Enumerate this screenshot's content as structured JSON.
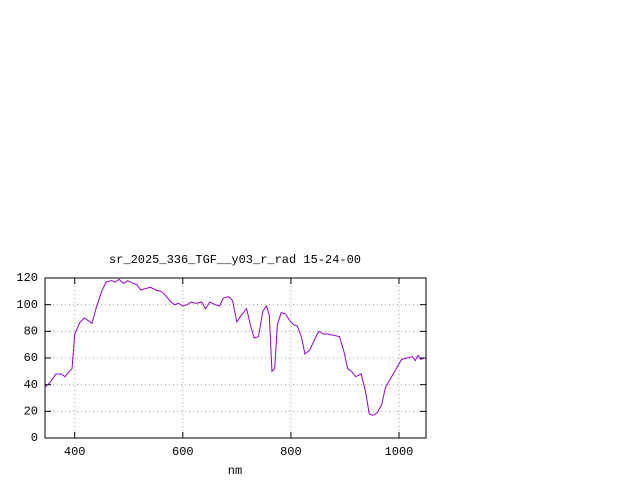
{
  "chart_data": {
    "type": "line",
    "title": "sr_2025_336_TGF__y03_r_rad 15-24-00",
    "x_label": "nm",
    "xlim": [
      345,
      1050
    ],
    "xticks": [
      400,
      600,
      800,
      1000
    ],
    "ylim": [
      0,
      120
    ],
    "yticks": [
      0,
      20,
      40,
      60,
      80,
      100,
      120
    ],
    "grid": true,
    "series": [
      {
        "color": "#9400d3",
        "x": [
          345,
          355,
          365,
          375,
          382,
          390,
          395,
          400,
          410,
          418,
          425,
          432,
          440,
          450,
          458,
          468,
          475,
          482,
          490,
          498,
          508,
          515,
          522,
          530,
          540,
          550,
          560,
          570,
          578,
          585,
          592,
          600,
          608,
          615,
          625,
          635,
          642,
          650,
          660,
          668,
          675,
          685,
          692,
          700,
          708,
          718,
          725,
          732,
          740,
          748,
          755,
          760,
          765,
          770,
          775,
          782,
          790,
          798,
          805,
          812,
          820,
          826,
          835,
          845,
          852,
          860,
          868,
          880,
          890,
          898,
          905,
          912,
          920,
          930,
          938,
          945,
          952,
          960,
          968,
          975,
          985,
          995,
          1005,
          1015,
          1025,
          1030,
          1035,
          1040,
          1048
        ],
        "values": [
          38,
          42,
          48,
          48,
          46,
          50,
          52,
          78,
          87,
          90,
          88,
          86,
          98,
          110,
          117,
          118,
          117,
          119,
          116,
          118,
          116,
          115,
          111,
          112,
          113,
          111,
          110,
          106,
          102,
          100,
          101,
          99,
          100,
          102,
          101,
          102,
          97,
          102,
          100,
          99,
          105,
          106,
          103,
          87,
          92,
          97,
          85,
          75,
          76,
          95,
          99,
          92,
          50,
          52,
          85,
          94,
          93,
          88,
          85,
          84,
          75,
          63,
          66,
          75,
          80,
          78,
          78,
          77,
          76,
          65,
          52,
          50,
          46,
          48,
          35,
          18,
          17,
          19,
          25,
          38,
          45,
          52,
          59,
          60,
          61,
          58,
          62,
          59,
          60
        ]
      }
    ]
  }
}
